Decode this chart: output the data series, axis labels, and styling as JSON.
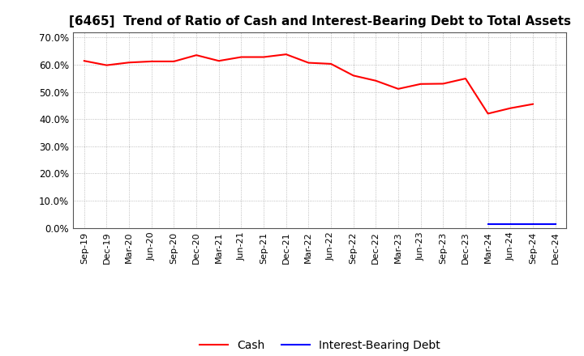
{
  "title": "[6465]  Trend of Ratio of Cash and Interest-Bearing Debt to Total Assets",
  "x_labels": [
    "Sep-19",
    "Dec-19",
    "Mar-20",
    "Jun-20",
    "Sep-20",
    "Dec-20",
    "Mar-21",
    "Jun-21",
    "Sep-21",
    "Dec-21",
    "Mar-22",
    "Jun-22",
    "Sep-22",
    "Dec-22",
    "Mar-23",
    "Jun-23",
    "Sep-23",
    "Dec-23",
    "Mar-24",
    "Jun-24",
    "Sep-24",
    "Dec-24"
  ],
  "cash": [
    0.614,
    0.598,
    0.608,
    0.612,
    0.612,
    0.635,
    0.614,
    0.628,
    0.628,
    0.638,
    0.607,
    0.603,
    0.56,
    0.541,
    0.511,
    0.529,
    0.53,
    0.549,
    0.42,
    0.44,
    0.455,
    null
  ],
  "interest_bearing_debt": [
    null,
    null,
    null,
    null,
    null,
    null,
    null,
    null,
    null,
    null,
    null,
    null,
    null,
    null,
    null,
    null,
    null,
    null,
    0.013,
    0.013,
    0.013,
    0.013
  ],
  "ylim": [
    0.0,
    0.72
  ],
  "yticks": [
    0.0,
    0.1,
    0.2,
    0.3,
    0.4,
    0.5,
    0.6,
    0.7
  ],
  "cash_color": "#ff0000",
  "debt_color": "#0000ff",
  "background_color": "#ffffff",
  "grid_color": "#aaaaaa",
  "title_fontsize": 11,
  "label_fontsize": 8,
  "legend_fontsize": 10,
  "legend_cash": "Cash",
  "legend_debt": "Interest-Bearing Debt"
}
